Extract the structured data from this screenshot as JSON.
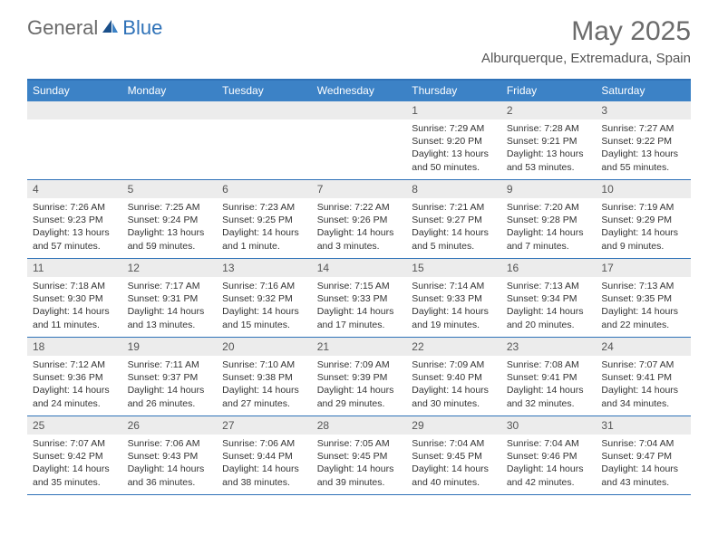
{
  "logo": {
    "text1": "General",
    "text2": "Blue"
  },
  "title": "May 2025",
  "location": "Alburquerque, Extremadura, Spain",
  "colors": {
    "brand_blue": "#2f72b8",
    "header_blue": "#3c82c6",
    "bg_gray": "#ececec",
    "text_gray": "#6b6b6b",
    "text_dark": "#333333"
  },
  "day_names": [
    "Sunday",
    "Monday",
    "Tuesday",
    "Wednesday",
    "Thursday",
    "Friday",
    "Saturday"
  ],
  "weeks": [
    [
      {
        "day": "",
        "sunrise": "",
        "sunset": "",
        "daylight1": "",
        "daylight2": ""
      },
      {
        "day": "",
        "sunrise": "",
        "sunset": "",
        "daylight1": "",
        "daylight2": ""
      },
      {
        "day": "",
        "sunrise": "",
        "sunset": "",
        "daylight1": "",
        "daylight2": ""
      },
      {
        "day": "",
        "sunrise": "",
        "sunset": "",
        "daylight1": "",
        "daylight2": ""
      },
      {
        "day": "1",
        "sunrise": "Sunrise: 7:29 AM",
        "sunset": "Sunset: 9:20 PM",
        "daylight1": "Daylight: 13 hours",
        "daylight2": "and 50 minutes."
      },
      {
        "day": "2",
        "sunrise": "Sunrise: 7:28 AM",
        "sunset": "Sunset: 9:21 PM",
        "daylight1": "Daylight: 13 hours",
        "daylight2": "and 53 minutes."
      },
      {
        "day": "3",
        "sunrise": "Sunrise: 7:27 AM",
        "sunset": "Sunset: 9:22 PM",
        "daylight1": "Daylight: 13 hours",
        "daylight2": "and 55 minutes."
      }
    ],
    [
      {
        "day": "4",
        "sunrise": "Sunrise: 7:26 AM",
        "sunset": "Sunset: 9:23 PM",
        "daylight1": "Daylight: 13 hours",
        "daylight2": "and 57 minutes."
      },
      {
        "day": "5",
        "sunrise": "Sunrise: 7:25 AM",
        "sunset": "Sunset: 9:24 PM",
        "daylight1": "Daylight: 13 hours",
        "daylight2": "and 59 minutes."
      },
      {
        "day": "6",
        "sunrise": "Sunrise: 7:23 AM",
        "sunset": "Sunset: 9:25 PM",
        "daylight1": "Daylight: 14 hours",
        "daylight2": "and 1 minute."
      },
      {
        "day": "7",
        "sunrise": "Sunrise: 7:22 AM",
        "sunset": "Sunset: 9:26 PM",
        "daylight1": "Daylight: 14 hours",
        "daylight2": "and 3 minutes."
      },
      {
        "day": "8",
        "sunrise": "Sunrise: 7:21 AM",
        "sunset": "Sunset: 9:27 PM",
        "daylight1": "Daylight: 14 hours",
        "daylight2": "and 5 minutes."
      },
      {
        "day": "9",
        "sunrise": "Sunrise: 7:20 AM",
        "sunset": "Sunset: 9:28 PM",
        "daylight1": "Daylight: 14 hours",
        "daylight2": "and 7 minutes."
      },
      {
        "day": "10",
        "sunrise": "Sunrise: 7:19 AM",
        "sunset": "Sunset: 9:29 PM",
        "daylight1": "Daylight: 14 hours",
        "daylight2": "and 9 minutes."
      }
    ],
    [
      {
        "day": "11",
        "sunrise": "Sunrise: 7:18 AM",
        "sunset": "Sunset: 9:30 PM",
        "daylight1": "Daylight: 14 hours",
        "daylight2": "and 11 minutes."
      },
      {
        "day": "12",
        "sunrise": "Sunrise: 7:17 AM",
        "sunset": "Sunset: 9:31 PM",
        "daylight1": "Daylight: 14 hours",
        "daylight2": "and 13 minutes."
      },
      {
        "day": "13",
        "sunrise": "Sunrise: 7:16 AM",
        "sunset": "Sunset: 9:32 PM",
        "daylight1": "Daylight: 14 hours",
        "daylight2": "and 15 minutes."
      },
      {
        "day": "14",
        "sunrise": "Sunrise: 7:15 AM",
        "sunset": "Sunset: 9:33 PM",
        "daylight1": "Daylight: 14 hours",
        "daylight2": "and 17 minutes."
      },
      {
        "day": "15",
        "sunrise": "Sunrise: 7:14 AM",
        "sunset": "Sunset: 9:33 PM",
        "daylight1": "Daylight: 14 hours",
        "daylight2": "and 19 minutes."
      },
      {
        "day": "16",
        "sunrise": "Sunrise: 7:13 AM",
        "sunset": "Sunset: 9:34 PM",
        "daylight1": "Daylight: 14 hours",
        "daylight2": "and 20 minutes."
      },
      {
        "day": "17",
        "sunrise": "Sunrise: 7:13 AM",
        "sunset": "Sunset: 9:35 PM",
        "daylight1": "Daylight: 14 hours",
        "daylight2": "and 22 minutes."
      }
    ],
    [
      {
        "day": "18",
        "sunrise": "Sunrise: 7:12 AM",
        "sunset": "Sunset: 9:36 PM",
        "daylight1": "Daylight: 14 hours",
        "daylight2": "and 24 minutes."
      },
      {
        "day": "19",
        "sunrise": "Sunrise: 7:11 AM",
        "sunset": "Sunset: 9:37 PM",
        "daylight1": "Daylight: 14 hours",
        "daylight2": "and 26 minutes."
      },
      {
        "day": "20",
        "sunrise": "Sunrise: 7:10 AM",
        "sunset": "Sunset: 9:38 PM",
        "daylight1": "Daylight: 14 hours",
        "daylight2": "and 27 minutes."
      },
      {
        "day": "21",
        "sunrise": "Sunrise: 7:09 AM",
        "sunset": "Sunset: 9:39 PM",
        "daylight1": "Daylight: 14 hours",
        "daylight2": "and 29 minutes."
      },
      {
        "day": "22",
        "sunrise": "Sunrise: 7:09 AM",
        "sunset": "Sunset: 9:40 PM",
        "daylight1": "Daylight: 14 hours",
        "daylight2": "and 30 minutes."
      },
      {
        "day": "23",
        "sunrise": "Sunrise: 7:08 AM",
        "sunset": "Sunset: 9:41 PM",
        "daylight1": "Daylight: 14 hours",
        "daylight2": "and 32 minutes."
      },
      {
        "day": "24",
        "sunrise": "Sunrise: 7:07 AM",
        "sunset": "Sunset: 9:41 PM",
        "daylight1": "Daylight: 14 hours",
        "daylight2": "and 34 minutes."
      }
    ],
    [
      {
        "day": "25",
        "sunrise": "Sunrise: 7:07 AM",
        "sunset": "Sunset: 9:42 PM",
        "daylight1": "Daylight: 14 hours",
        "daylight2": "and 35 minutes."
      },
      {
        "day": "26",
        "sunrise": "Sunrise: 7:06 AM",
        "sunset": "Sunset: 9:43 PM",
        "daylight1": "Daylight: 14 hours",
        "daylight2": "and 36 minutes."
      },
      {
        "day": "27",
        "sunrise": "Sunrise: 7:06 AM",
        "sunset": "Sunset: 9:44 PM",
        "daylight1": "Daylight: 14 hours",
        "daylight2": "and 38 minutes."
      },
      {
        "day": "28",
        "sunrise": "Sunrise: 7:05 AM",
        "sunset": "Sunset: 9:45 PM",
        "daylight1": "Daylight: 14 hours",
        "daylight2": "and 39 minutes."
      },
      {
        "day": "29",
        "sunrise": "Sunrise: 7:04 AM",
        "sunset": "Sunset: 9:45 PM",
        "daylight1": "Daylight: 14 hours",
        "daylight2": "and 40 minutes."
      },
      {
        "day": "30",
        "sunrise": "Sunrise: 7:04 AM",
        "sunset": "Sunset: 9:46 PM",
        "daylight1": "Daylight: 14 hours",
        "daylight2": "and 42 minutes."
      },
      {
        "day": "31",
        "sunrise": "Sunrise: 7:04 AM",
        "sunset": "Sunset: 9:47 PM",
        "daylight1": "Daylight: 14 hours",
        "daylight2": "and 43 minutes."
      }
    ]
  ]
}
